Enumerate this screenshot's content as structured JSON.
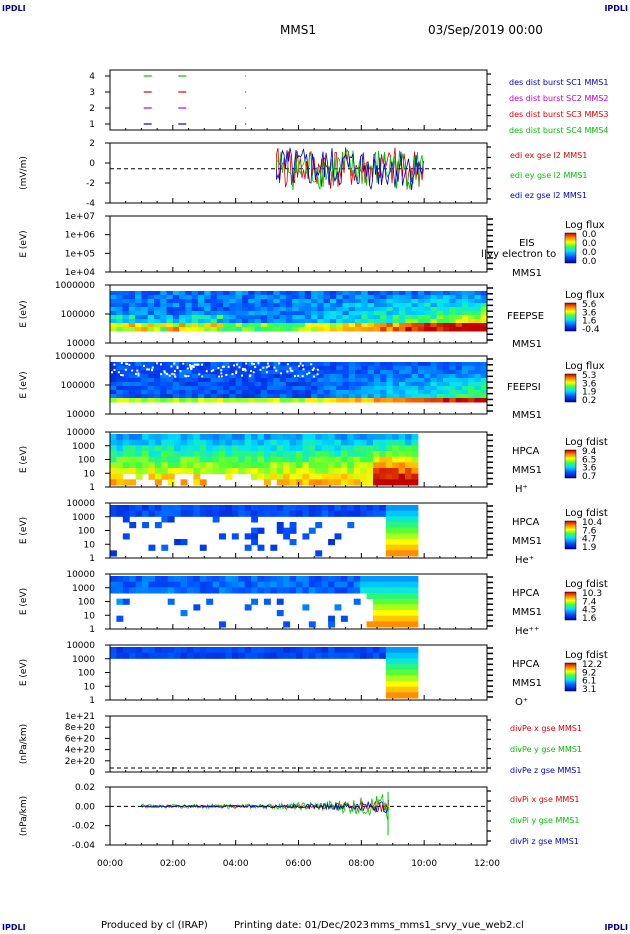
{
  "corner_label": "IPDLI",
  "header": {
    "spacecraft": "MMS1",
    "datetime": "03/Sep/2019 00:00"
  },
  "footer": {
    "produced_by": "Produced by cl (IRAP)",
    "printing_date": "Printing date: 01/Dec/2023",
    "file": "mms_mms1_srvy_vue_web2.cl"
  },
  "colors": {
    "black": "#000000",
    "red": "#e00000",
    "green": "#00c000",
    "blue": "#0000c0",
    "magenta": "#c000c0"
  },
  "x_axis": {
    "ticks": [
      "00:00",
      "02:00",
      "04:00",
      "06:00",
      "08:00",
      "10:00",
      "12:00"
    ],
    "range_hours": [
      0,
      12
    ]
  },
  "chart_data": [
    {
      "id": "avail",
      "type": "line",
      "ylabel": "",
      "yticks": [
        "4",
        "3",
        "2",
        "1"
      ],
      "legend": [
        {
          "text": "des dist burst SC1 MMS1",
          "color": "#0000c0"
        },
        {
          "text": "des dist burst SC2 MMS2",
          "color": "#c000c0"
        },
        {
          "text": "des dist burst SC3 MMS3",
          "color": "#e00000"
        },
        {
          "text": "des dist burst SC4 MMS4",
          "color": "#00c000"
        }
      ],
      "series": [
        {
          "sc": 4,
          "color": "#00c000",
          "x": [
            1.2,
            2.3,
            4.3
          ]
        },
        {
          "sc": 3,
          "color": "#e00000",
          "x": [
            1.2,
            2.3,
            4.3
          ]
        },
        {
          "sc": 2,
          "color": "#c000c0",
          "x": [
            1.2,
            2.3,
            4.3
          ]
        },
        {
          "sc": 1,
          "color": "#0000c0",
          "x": [
            1.2,
            2.3,
            4.3
          ]
        }
      ]
    },
    {
      "id": "edi",
      "type": "line",
      "ylabel": "(mV/m)",
      "yticks": [
        "2",
        "0",
        "-2",
        "-4"
      ],
      "ylim": [
        -4,
        3
      ],
      "legend": [
        {
          "text": "edi ex gse l2 MMS1",
          "color": "#e00000"
        },
        {
          "text": "edi ey gse l2 MMS1",
          "color": "#00c000"
        },
        {
          "text": "edi ez gse l2 MMS1",
          "color": "#0000c0"
        }
      ],
      "active_range_hours": [
        5.3,
        10.0
      ]
    },
    {
      "id": "eis",
      "type": "heatmap",
      "ylabel": "E (eV)",
      "yticks": [
        "1e+07",
        "1e+06",
        "1e+05",
        "1e+04"
      ],
      "right_labels": [
        "EIS",
        "MMS1"
      ],
      "overlay_text": "l|vy electron to",
      "cbar_title": "Log flux",
      "cbar_ticks": [
        "0.0",
        "0.0",
        "0.0",
        "0.0"
      ]
    },
    {
      "id": "feepse",
      "type": "heatmap",
      "ylabel": "E (eV)",
      "yticks": [
        "1000000",
        "100000",
        "10000"
      ],
      "right_labels": [
        "FEEPSE",
        "MMS1"
      ],
      "cbar_title": "Log flux",
      "cbar_ticks": [
        "5.6",
        "3.6",
        "1.6",
        "-0.4"
      ]
    },
    {
      "id": "feepsi",
      "type": "heatmap",
      "ylabel": "E (eV)",
      "yticks": [
        "1000000",
        "100000",
        "10000"
      ],
      "right_labels": [
        "FEEPSI",
        "MMS1"
      ],
      "cbar_title": "Log flux",
      "cbar_ticks": [
        "5.3",
        "3.6",
        "1.9",
        "0.2"
      ]
    },
    {
      "id": "hpca_h",
      "type": "heatmap",
      "ylabel": "E (eV)",
      "yticks": [
        "10000",
        "1000",
        "100",
        "10",
        "1"
      ],
      "right_labels": [
        "HPCA",
        "MMS1",
        "H⁺"
      ],
      "cbar_title": "Log fdist",
      "cbar_ticks": [
        "9.4",
        "6.5",
        "3.6",
        "0.7"
      ],
      "end_hours": 9.8
    },
    {
      "id": "hpca_he",
      "type": "heatmap",
      "ylabel": "E (eV)",
      "yticks": [
        "10000",
        "1000",
        "100",
        "10",
        "1"
      ],
      "right_labels": [
        "HPCA",
        "MMS1",
        "He⁺"
      ],
      "cbar_title": "Log fdist",
      "cbar_ticks": [
        "10.4",
        "7.6",
        "4.7",
        "1.9"
      ],
      "end_hours": 9.8
    },
    {
      "id": "hpca_he2",
      "type": "heatmap",
      "ylabel": "E (eV)",
      "yticks": [
        "10000",
        "1000",
        "100",
        "10",
        "1"
      ],
      "right_labels": [
        "HPCA",
        "MMS1",
        "He⁺⁺"
      ],
      "cbar_title": "Log fdist",
      "cbar_ticks": [
        "10.3",
        "7.4",
        "4.5",
        "1.6"
      ],
      "end_hours": 9.8
    },
    {
      "id": "hpca_o",
      "type": "heatmap",
      "ylabel": "E (eV)",
      "yticks": [
        "10000",
        "1000",
        "100",
        "10",
        "1"
      ],
      "right_labels": [
        "HPCA",
        "MMS1",
        "O⁺"
      ],
      "cbar_title": "Log fdist",
      "cbar_ticks": [
        "12.2",
        "9.2",
        "6.1",
        "3.1"
      ],
      "end_hours": 9.8
    },
    {
      "id": "divpe",
      "type": "line",
      "ylabel": "(nPa/km)",
      "yticks": [
        "1e+21",
        "8e+20",
        "6e+20",
        "4e+20",
        "2e+20",
        "0"
      ],
      "legend": [
        {
          "text": "divPe x gse MMS1",
          "color": "#e00000"
        },
        {
          "text": "divPe y gse MMS1",
          "color": "#00c000"
        },
        {
          "text": "divPe z gse MMS1",
          "color": "#0000c0"
        }
      ]
    },
    {
      "id": "divpi",
      "type": "line",
      "ylabel": "(nPa/km)",
      "yticks": [
        "0.02",
        "0.00",
        "-0.02",
        "-0.04"
      ],
      "ylim": [
        -0.04,
        0.02
      ],
      "legend": [
        {
          "text": "divPi x gse MMS1",
          "color": "#e00000"
        },
        {
          "text": "divPi y gse MMS1",
          "color": "#00c000"
        },
        {
          "text": "divPi z gse MMS1",
          "color": "#0000c0"
        }
      ],
      "active_range_hours": [
        1.0,
        8.9
      ]
    }
  ]
}
